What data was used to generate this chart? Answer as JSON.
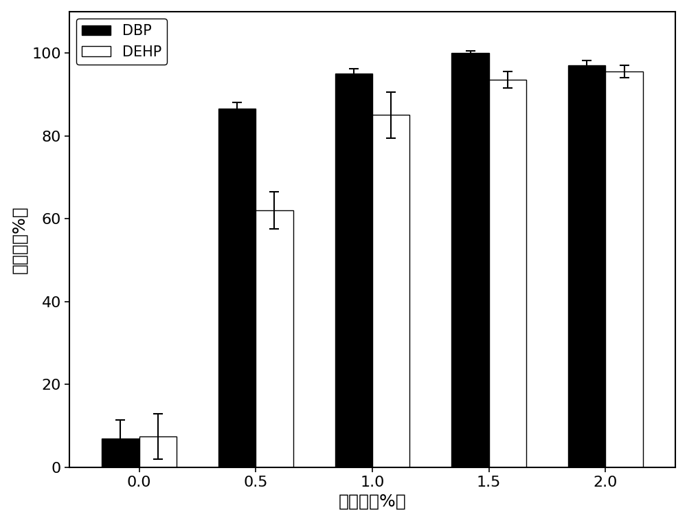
{
  "categories": [
    0.0,
    0.5,
    1.0,
    1.5,
    2.0
  ],
  "category_labels": [
    "0.0",
    "0.5",
    "1.0",
    "1.5",
    "2.0"
  ],
  "dbp_values": [
    7.0,
    86.5,
    95.0,
    100.0,
    97.0
  ],
  "dehp_values": [
    7.5,
    62.0,
    85.0,
    93.5,
    95.5
  ],
  "dbp_errors": [
    4.5,
    1.5,
    1.2,
    0.5,
    1.2
  ],
  "dehp_errors": [
    5.5,
    4.5,
    5.5,
    2.0,
    1.5
  ],
  "dbp_color": "#000000",
  "dehp_color": "#ffffff",
  "bar_edgecolor": "#000000",
  "xlabel": "接种量（%）",
  "ylabel": "降解率（%）",
  "ylim": [
    0,
    110
  ],
  "yticks": [
    0,
    20,
    40,
    60,
    80,
    100
  ],
  "legend_labels": [
    "DBP",
    "DEHP"
  ],
  "bar_width": 0.32,
  "figsize": [
    10.0,
    7.58
  ],
  "dpi": 100,
  "axis_fontsize": 18,
  "tick_fontsize": 16,
  "legend_fontsize": 15,
  "background_color": "#ffffff",
  "elinewidth": 1.5,
  "ecapsize": 5
}
